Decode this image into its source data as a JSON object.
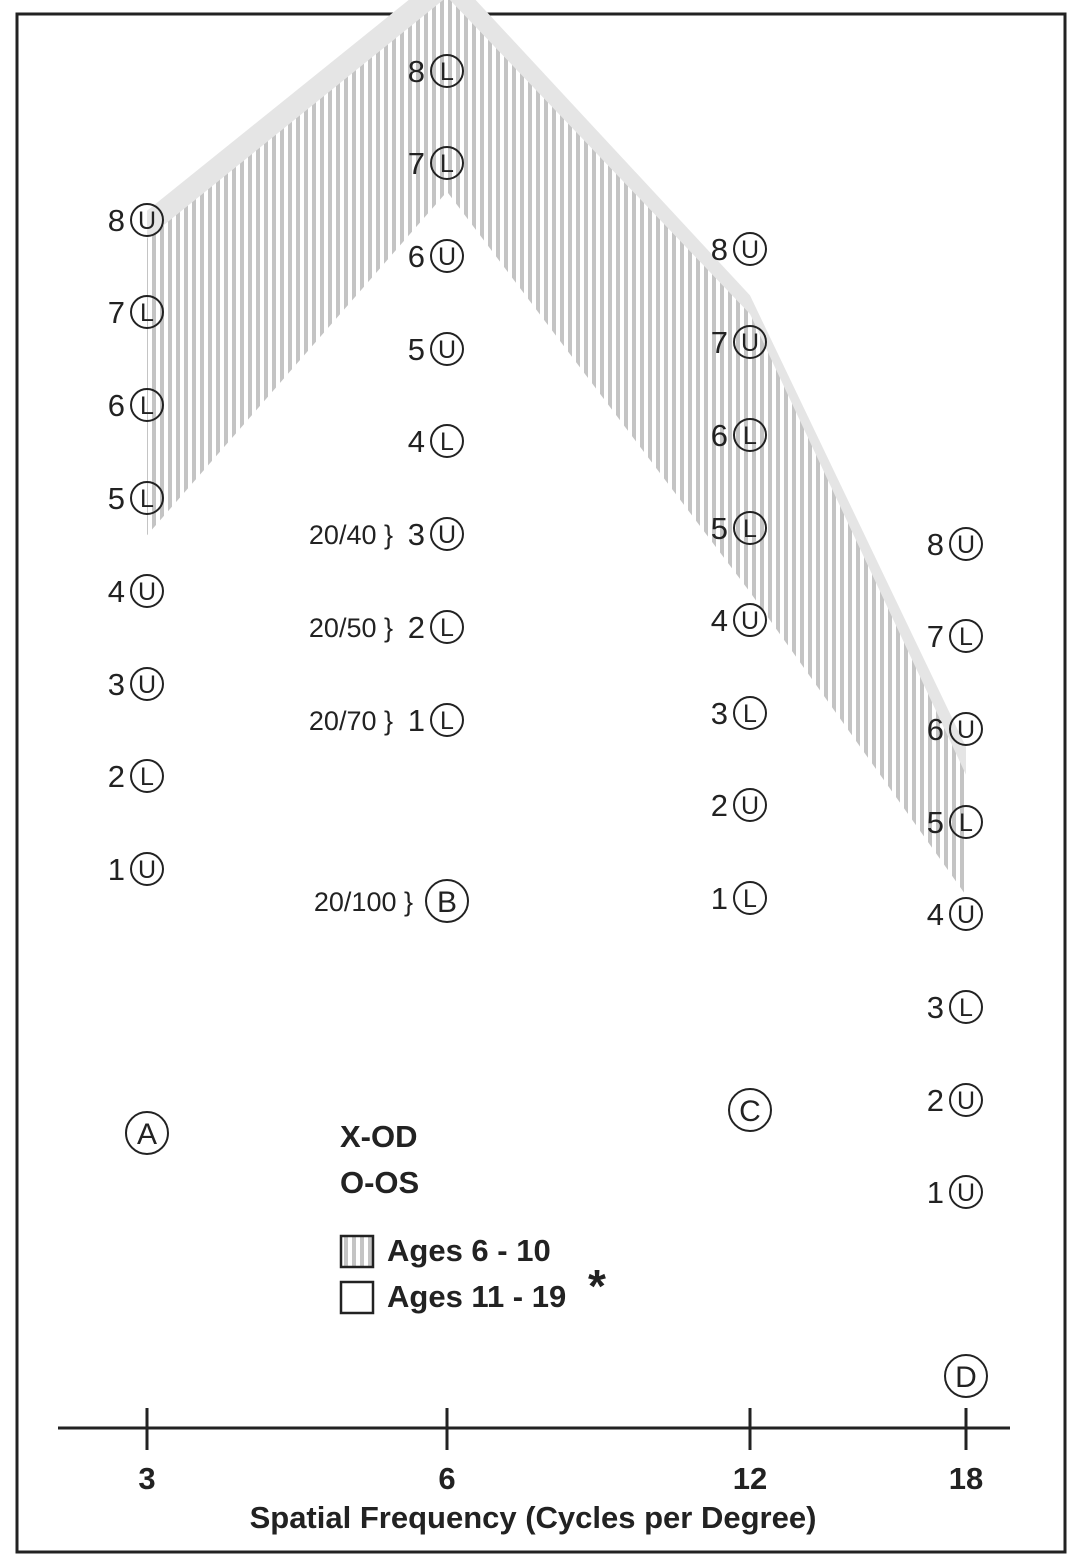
{
  "chart_data": {
    "type": "line",
    "title": "",
    "xlabel": "Spatial Frequency (Cycles per Degree)",
    "x_ticks": [
      "3",
      "6",
      "12",
      "18"
    ],
    "columns": [
      {
        "x": "3",
        "label": "A",
        "rows": [
          {
            "row": 1,
            "mark": "U"
          },
          {
            "row": 2,
            "mark": "L"
          },
          {
            "row": 3,
            "mark": "U"
          },
          {
            "row": 4,
            "mark": "U"
          },
          {
            "row": 5,
            "mark": "L"
          },
          {
            "row": 6,
            "mark": "L"
          },
          {
            "row": 7,
            "mark": "L"
          },
          {
            "row": 8,
            "mark": "U"
          }
        ]
      },
      {
        "x": "6",
        "label": "B",
        "rows": [
          {
            "row": 1,
            "mark": "L",
            "acuity": "20/70"
          },
          {
            "row": 2,
            "mark": "L",
            "acuity": "20/50"
          },
          {
            "row": 3,
            "mark": "U",
            "acuity": "20/40"
          },
          {
            "row": 4,
            "mark": "L"
          },
          {
            "row": 5,
            "mark": "U"
          },
          {
            "row": 6,
            "mark": "U"
          },
          {
            "row": 7,
            "mark": "L"
          },
          {
            "row": 8,
            "mark": "L"
          }
        ],
        "blank_acuity": "20/100"
      },
      {
        "x": "12",
        "label": "C",
        "rows": [
          {
            "row": 1,
            "mark": "L"
          },
          {
            "row": 2,
            "mark": "U"
          },
          {
            "row": 3,
            "mark": "L"
          },
          {
            "row": 4,
            "mark": "U"
          },
          {
            "row": 5,
            "mark": "L"
          },
          {
            "row": 6,
            "mark": "L"
          },
          {
            "row": 7,
            "mark": "U"
          },
          {
            "row": 8,
            "mark": "U"
          }
        ]
      },
      {
        "x": "18",
        "label": "D",
        "rows": [
          {
            "row": 1,
            "mark": "U"
          },
          {
            "row": 2,
            "mark": "U"
          },
          {
            "row": 3,
            "mark": "L"
          },
          {
            "row": 4,
            "mark": "U"
          },
          {
            "row": 5,
            "mark": "L"
          },
          {
            "row": 6,
            "mark": "U"
          },
          {
            "row": 7,
            "mark": "L"
          },
          {
            "row": 8,
            "mark": "U"
          }
        ]
      }
    ],
    "norm_bands": [
      {
        "name": "Ages 6 - 10",
        "style": "striped",
        "upper": [
          7.8,
          8.8,
          7.3,
          5.5
        ],
        "lower": [
          4.6,
          6.7,
          4.3,
          4.2
        ]
      },
      {
        "name": "Ages 11 - 19",
        "style": "solid",
        "upper": [
          8.1,
          9.1,
          7.5,
          5.8
        ],
        "lower": [
          4.9,
          7.0,
          4.7,
          4.6
        ]
      }
    ],
    "legend": {
      "markers": [
        "X-OD",
        "O-OS"
      ],
      "items": [
        "Ages 6 - 10",
        "Ages 11 - 19"
      ],
      "asterisk": "*"
    },
    "colors": {
      "solid_band": "#e5e5e5",
      "stripe": "#c4c4c4",
      "ink": "#222222"
    }
  }
}
